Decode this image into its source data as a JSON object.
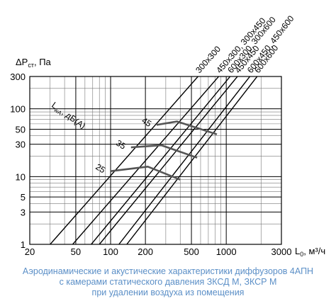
{
  "chart_data": {
    "type": "line",
    "title": "",
    "xlabel_main": "L",
    "xlabel_sub": "0",
    "xlabel_unit": ", м³/ч",
    "ylabel_main": "ΔP",
    "ylabel_sub": "ст",
    "ylabel_unit": ", Па",
    "x_scale": "log",
    "y_scale": "log",
    "xlim": [
      20,
      3000
    ],
    "ylim": [
      1,
      300
    ],
    "grid": true,
    "x_tick_labels": [
      {
        "value": 20,
        "label": "20"
      },
      {
        "value": 50,
        "label": "50"
      },
      {
        "value": 100,
        "label": "100"
      },
      {
        "value": 200,
        "label": "200"
      },
      {
        "value": 500,
        "label": "500"
      },
      {
        "value": 1000,
        "label": "1000"
      },
      {
        "value": 3000,
        "label": "3000"
      }
    ],
    "y_tick_labels": [
      {
        "value": 1,
        "label": "1"
      },
      {
        "value": 3,
        "label": "3"
      },
      {
        "value": 5,
        "label": "5"
      },
      {
        "value": 10,
        "label": "10"
      },
      {
        "value": 30,
        "label": "30"
      },
      {
        "value": 50,
        "label": "50"
      },
      {
        "value": 100,
        "label": "100"
      },
      {
        "value": 300,
        "label": "300"
      }
    ],
    "size_lines": [
      {
        "label": "300x300",
        "x": [
          30,
          570
        ],
        "y": [
          1,
          300
        ]
      },
      {
        "label": "450x300, 300x450",
        "x": [
          47,
          860
        ],
        "y": [
          1,
          300
        ]
      },
      {
        "label": "600x300, 300x600",
        "x": [
          68,
          1080
        ],
        "y": [
          1,
          300
        ]
      },
      {
        "label": "450x450",
        "x": [
          80,
          1250
        ],
        "y": [
          1,
          300
        ]
      },
      {
        "label": "600x450, 450x600",
        "x": [
          118,
          1600
        ],
        "y": [
          1,
          300
        ]
      },
      {
        "label": "600x600",
        "x": [
          138,
          1850
        ],
        "y": [
          1,
          300
        ]
      }
    ],
    "noise_label": "L",
    "noise_label_sub": "wA",
    "noise_label_unit": ", дБ(А)",
    "noise_curves": [
      {
        "name": "25",
        "x": [
          100,
          210,
          400
        ],
        "y": [
          12,
          14,
          9
        ]
      },
      {
        "name": "35",
        "x": [
          150,
          275,
          560
        ],
        "y": [
          27,
          29,
          19
        ]
      },
      {
        "name": "45",
        "x": [
          250,
          375,
          830
        ],
        "y": [
          58,
          65,
          42
        ]
      }
    ]
  },
  "caption": {
    "line1": "Аэродинамические и акустические характеристики диффузоров 4АПН",
    "line2": "с камерами статического давления ЗКСД М, ЗКСР М",
    "line3": "при удалении воздуха из помещения"
  }
}
